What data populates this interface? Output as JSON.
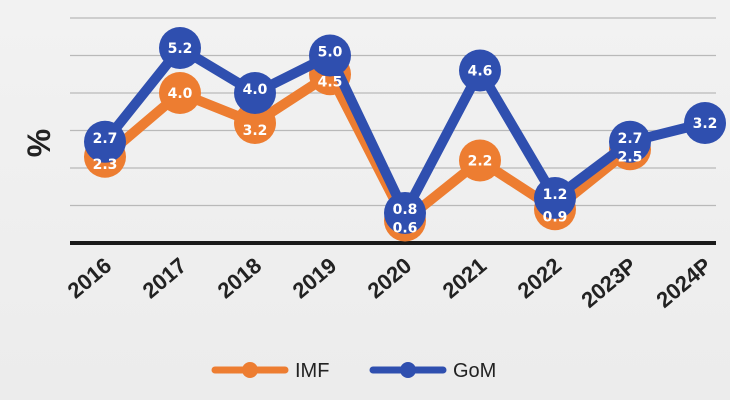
{
  "chart_data": {
    "type": "line",
    "categories": [
      "2016",
      "2017",
      "2018",
      "2019",
      "2020",
      "2021",
      "2022",
      "2023P",
      "2024P"
    ],
    "series": [
      {
        "name": "IMF",
        "values": [
          2.3,
          4.0,
          3.2,
          4.5,
          0.6,
          2.2,
          0.9,
          2.5,
          null
        ],
        "labels": [
          "2.3",
          "4.0",
          "3.2",
          "4.5",
          "0.6",
          "2.2",
          "0.9",
          "2.5",
          ""
        ],
        "color": "#ED7D31"
      },
      {
        "name": "GoM",
        "values": [
          2.7,
          5.2,
          4.0,
          5.0,
          0.8,
          4.6,
          1.2,
          2.7,
          3.2
        ],
        "labels": [
          "2.7",
          "5.2",
          "4.0",
          "5.0",
          "0.8",
          "4.6",
          "1.2",
          "2.7",
          "3.2"
        ],
        "color": "#2F4FAF"
      }
    ],
    "ylabel": "%",
    "ylim": [
      0,
      6
    ],
    "grid": true,
    "legend": "bottom"
  }
}
